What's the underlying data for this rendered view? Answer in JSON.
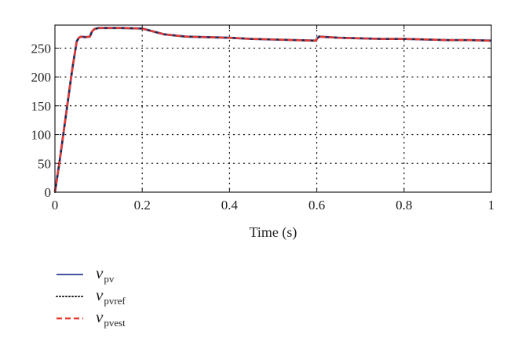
{
  "chart_data": {
    "type": "line",
    "xlabel": "Time (s)",
    "ylabel": "",
    "xlim": [
      0,
      1
    ],
    "ylim": [
      0,
      290
    ],
    "x_ticks": [
      "0",
      "0.2",
      "0.4",
      "0.6",
      "0.8",
      "1"
    ],
    "y_ticks": [
      "0",
      "50",
      "100",
      "150",
      "200",
      "250"
    ],
    "x_tick_values": [
      0,
      0.2,
      0.4,
      0.6,
      0.8,
      1
    ],
    "y_tick_values": [
      0,
      50,
      100,
      150,
      200,
      250
    ],
    "grid": "dotted",
    "legend_position": "below",
    "series": [
      {
        "name_main": "v",
        "name_sub": "pv",
        "color": "#2b3a8f",
        "style": "solid",
        "x": [
          0,
          0.01,
          0.02,
          0.03,
          0.04,
          0.05,
          0.055,
          0.06,
          0.07,
          0.08,
          0.085,
          0.09,
          0.1,
          0.15,
          0.2,
          0.25,
          0.3,
          0.35,
          0.4,
          0.45,
          0.5,
          0.55,
          0.598,
          0.6,
          0.605,
          0.65,
          0.7,
          0.75,
          0.8,
          0.85,
          0.9,
          0.95,
          1.0
        ],
        "y": [
          0,
          50,
          105,
          160,
          215,
          262,
          268,
          270,
          269,
          270,
          279,
          283,
          285,
          285,
          284,
          274,
          270,
          269,
          268,
          266,
          265,
          264,
          263,
          266,
          270,
          268,
          267,
          266,
          266,
          265,
          264,
          264,
          263
        ]
      },
      {
        "name_main": "v",
        "name_sub": "pvref",
        "color": "#231f20",
        "style": "dotted",
        "x": [
          0,
          0.01,
          0.02,
          0.03,
          0.04,
          0.05,
          0.055,
          0.06,
          0.07,
          0.08,
          0.085,
          0.09,
          0.1,
          0.15,
          0.2,
          0.25,
          0.3,
          0.35,
          0.4,
          0.45,
          0.5,
          0.55,
          0.598,
          0.6,
          0.605,
          0.65,
          0.7,
          0.75,
          0.8,
          0.85,
          0.9,
          0.95,
          1.0
        ],
        "y": [
          0,
          50,
          105,
          160,
          215,
          262,
          268,
          270,
          269,
          270,
          279,
          283,
          285,
          285,
          284,
          274,
          270,
          269,
          268,
          266,
          265,
          264,
          263,
          266,
          270,
          268,
          267,
          266,
          266,
          265,
          264,
          264,
          263
        ]
      },
      {
        "name_main": "v",
        "name_sub": "pvest",
        "color": "#e8392f",
        "style": "dashed",
        "x": [
          0,
          0.01,
          0.02,
          0.03,
          0.04,
          0.05,
          0.055,
          0.06,
          0.07,
          0.08,
          0.085,
          0.09,
          0.1,
          0.15,
          0.2,
          0.25,
          0.3,
          0.35,
          0.4,
          0.45,
          0.5,
          0.55,
          0.598,
          0.6,
          0.605,
          0.65,
          0.7,
          0.75,
          0.8,
          0.85,
          0.9,
          0.95,
          1.0
        ],
        "y": [
          0,
          50,
          105,
          160,
          215,
          262,
          268,
          270,
          269,
          270,
          279,
          283,
          285,
          285,
          284,
          274,
          270,
          269,
          268,
          266,
          265,
          264,
          263,
          266,
          270,
          268,
          267,
          266,
          266,
          265,
          264,
          264,
          263
        ]
      }
    ]
  }
}
